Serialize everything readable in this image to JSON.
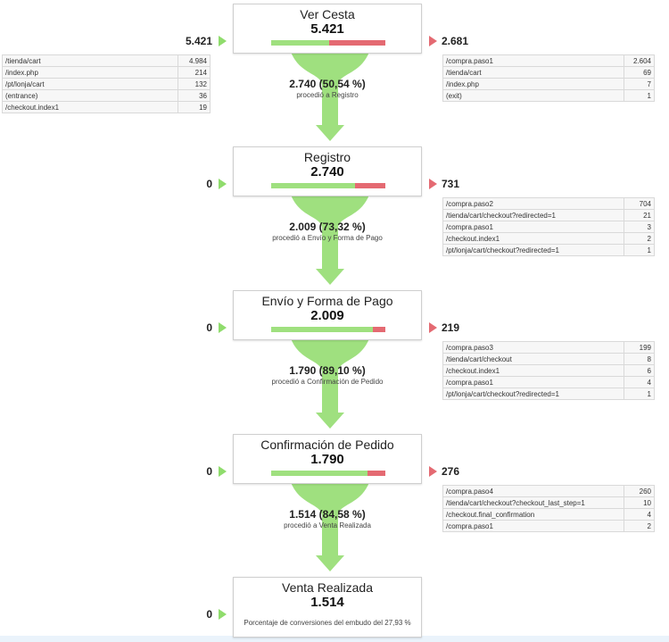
{
  "colors": {
    "green": "#8fdc6c",
    "green_funnel": "#9fe07f",
    "red": "#e46a72",
    "border": "#cfcfcf"
  },
  "steps": [
    {
      "name": "Ver Cesta",
      "value": "5.421",
      "progress_fraction": 0.505,
      "in_total": "5.421",
      "out_total": "2.681",
      "entrances": [
        {
          "page": "/tienda/cart",
          "count": "4.984"
        },
        {
          "page": "/index.php",
          "count": "214"
        },
        {
          "page": "/pt/lonja/cart",
          "count": "132"
        },
        {
          "page": "(entrance)",
          "count": "36"
        },
        {
          "page": "/checkout.index1",
          "count": "19"
        }
      ],
      "exits": [
        {
          "page": "/compra.paso1",
          "count": "2.604"
        },
        {
          "page": "/tienda/cart",
          "count": "69"
        },
        {
          "page": "/index.php",
          "count": "7"
        },
        {
          "page": "(exit)",
          "count": "1"
        }
      ],
      "conversion": {
        "value": "2.740 (50,54 %)",
        "label": "procedió a Registro"
      }
    },
    {
      "name": "Registro",
      "value": "2.740",
      "progress_fraction": 0.733,
      "in_total": "0",
      "out_total": "731",
      "entrances": [],
      "exits": [
        {
          "page": "/compra.paso2",
          "count": "704"
        },
        {
          "page": "/tienda/cart/checkout?redirected=1",
          "count": "21"
        },
        {
          "page": "/compra.paso1",
          "count": "3"
        },
        {
          "page": "/checkout.index1",
          "count": "2"
        },
        {
          "page": "/pt/lonja/cart/checkout?redirected=1",
          "count": "1"
        }
      ],
      "conversion": {
        "value": "2.009 (73,32 %)",
        "label": "procedió a Envío y Forma de Pago"
      }
    },
    {
      "name": "Envío y Forma de Pago",
      "value": "2.009",
      "progress_fraction": 0.891,
      "in_total": "0",
      "out_total": "219",
      "entrances": [],
      "exits": [
        {
          "page": "/compra.paso3",
          "count": "199"
        },
        {
          "page": "/tienda/cart/checkout",
          "count": "8"
        },
        {
          "page": "/checkout.index1",
          "count": "6"
        },
        {
          "page": "/compra.paso1",
          "count": "4"
        },
        {
          "page": "/pt/lonja/cart/checkout?redirected=1",
          "count": "1"
        }
      ],
      "conversion": {
        "value": "1.790 (89,10 %)",
        "label": "procedió a Confirmación de Pedido"
      }
    },
    {
      "name": "Confirmación de Pedido",
      "value": "1.790",
      "progress_fraction": 0.846,
      "in_total": "0",
      "out_total": "276",
      "entrances": [],
      "exits": [
        {
          "page": "/compra.paso4",
          "count": "260"
        },
        {
          "page": "/tienda/cart/checkout?checkout_last_step=1",
          "count": "10"
        },
        {
          "page": "/checkout.final_confirmation",
          "count": "4"
        },
        {
          "page": "/compra.paso1",
          "count": "2"
        }
      ],
      "conversion": {
        "value": "1.514 (84,58 %)",
        "label": "procedió a Venta Realizada"
      }
    },
    {
      "name": "Venta Realizada",
      "value": "1.514",
      "in_total": "0",
      "note": "Porcentaje de conversiones del embudo del 27,93 %"
    }
  ]
}
